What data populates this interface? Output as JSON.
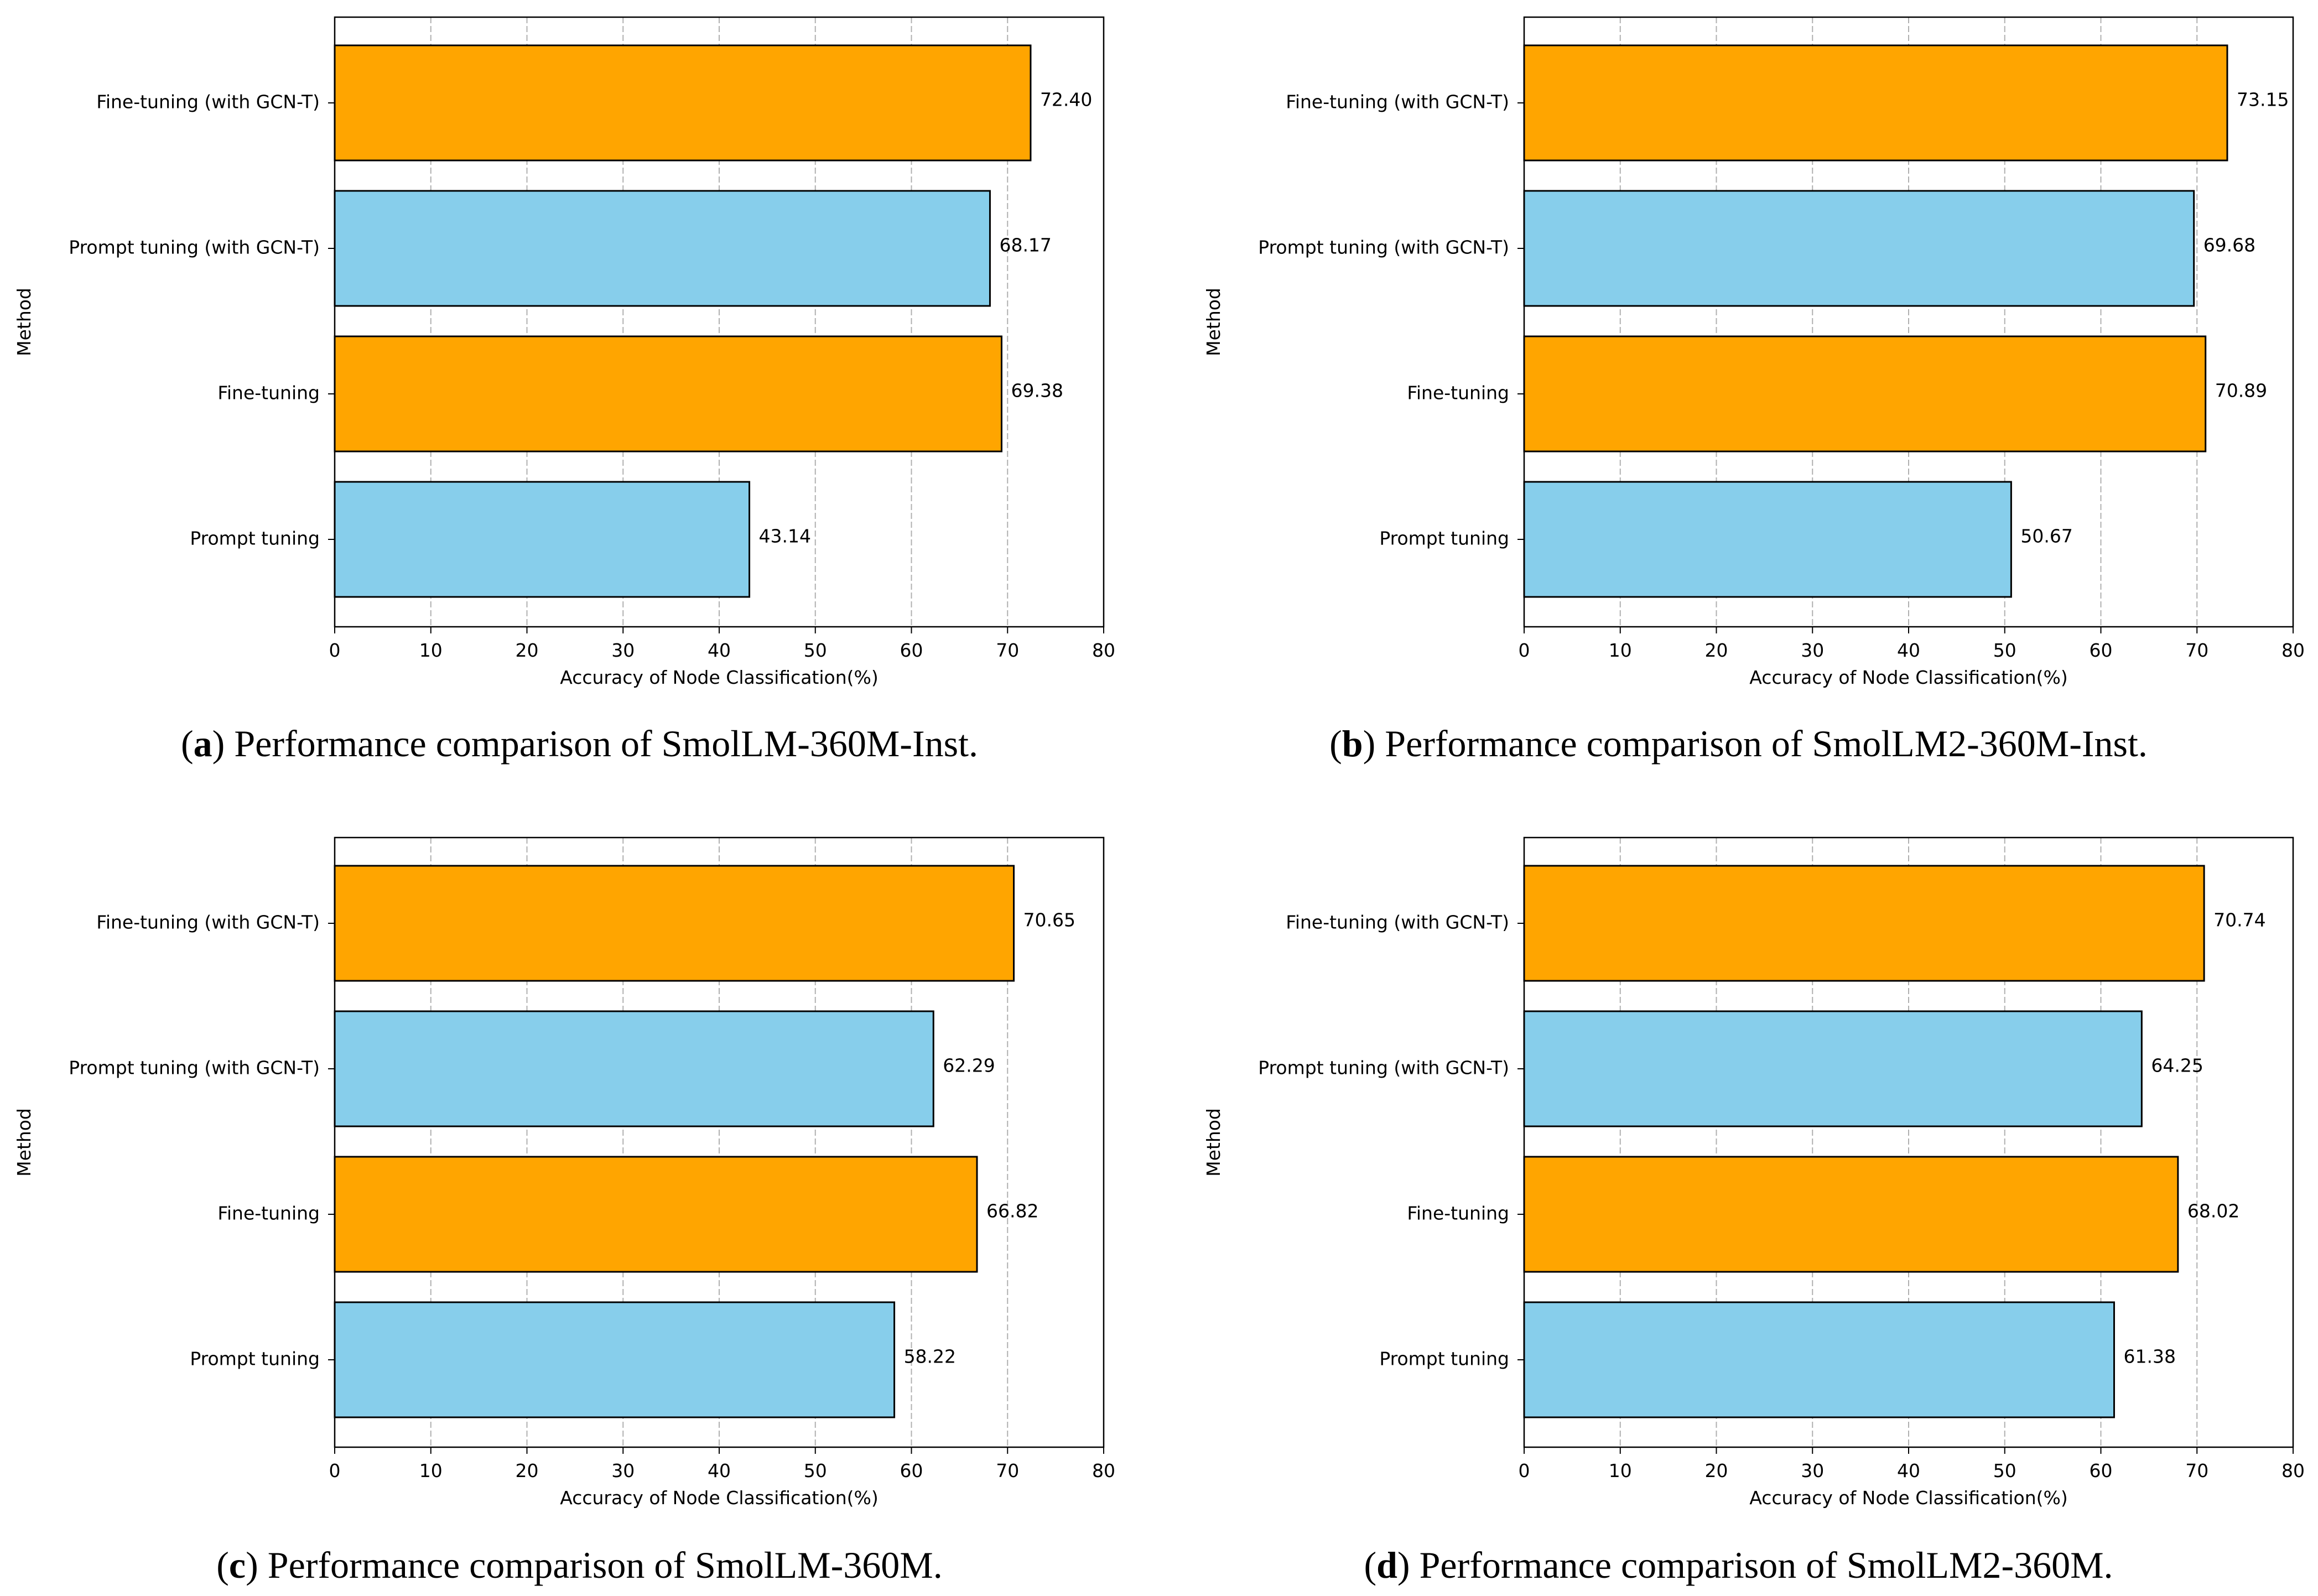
{
  "colors": {
    "orange": "#FFA500",
    "skyblue": "#87CEEB",
    "edge": "#000000",
    "grid": "#b0b0b0"
  },
  "chart_data": [
    {
      "type": "bar",
      "orientation": "horizontal",
      "caption": {
        "letter": "a",
        "text": " Performance comparison of SmolLM-360M-Inst."
      },
      "categories": [
        "Prompt tuning",
        "Fine-tuning",
        "Prompt tuning (with GCN-T)",
        "Fine-tuning (with GCN-T)"
      ],
      "values": [
        43.14,
        69.38,
        68.17,
        72.4
      ],
      "value_labels": [
        "43.14",
        "69.38",
        "68.17",
        "72.40"
      ],
      "bar_colors": [
        "skyblue",
        "orange",
        "skyblue",
        "orange"
      ],
      "xlabel": "Accuracy of Node Classification(%)",
      "ylabel": "Method",
      "xlim": [
        0,
        80
      ],
      "xticks": [
        0,
        10,
        20,
        30,
        40,
        50,
        60,
        70,
        80
      ],
      "grid": "x-dashed"
    },
    {
      "type": "bar",
      "orientation": "horizontal",
      "caption": {
        "letter": "b",
        "text": " Performance comparison of SmolLM2-360M-Inst."
      },
      "categories": [
        "Prompt tuning",
        "Fine-tuning",
        "Prompt tuning (with GCN-T)",
        "Fine-tuning (with GCN-T)"
      ],
      "values": [
        50.67,
        70.89,
        69.68,
        73.15
      ],
      "value_labels": [
        "50.67",
        "70.89",
        "69.68",
        "73.15"
      ],
      "bar_colors": [
        "skyblue",
        "orange",
        "skyblue",
        "orange"
      ],
      "xlabel": "Accuracy of Node Classification(%)",
      "ylabel": "Method",
      "xlim": [
        0,
        80
      ],
      "xticks": [
        0,
        10,
        20,
        30,
        40,
        50,
        60,
        70,
        80
      ],
      "grid": "x-dashed"
    },
    {
      "type": "bar",
      "orientation": "horizontal",
      "caption": {
        "letter": "c",
        "text": " Performance comparison of SmolLM-360M."
      },
      "categories": [
        "Prompt tuning",
        "Fine-tuning",
        "Prompt tuning (with GCN-T)",
        "Fine-tuning (with GCN-T)"
      ],
      "values": [
        58.22,
        66.82,
        62.29,
        70.65
      ],
      "value_labels": [
        "58.22",
        "66.82",
        "62.29",
        "70.65"
      ],
      "bar_colors": [
        "skyblue",
        "orange",
        "skyblue",
        "orange"
      ],
      "xlabel": "Accuracy of Node Classification(%)",
      "ylabel": "Method",
      "xlim": [
        0,
        80
      ],
      "xticks": [
        0,
        10,
        20,
        30,
        40,
        50,
        60,
        70,
        80
      ],
      "grid": "x-dashed"
    },
    {
      "type": "bar",
      "orientation": "horizontal",
      "caption": {
        "letter": "d",
        "text": " Performance comparison of SmolLM2-360M."
      },
      "categories": [
        "Prompt tuning",
        "Fine-tuning",
        "Prompt tuning (with GCN-T)",
        "Fine-tuning (with GCN-T)"
      ],
      "values": [
        61.38,
        68.02,
        64.25,
        70.74
      ],
      "value_labels": [
        "61.38",
        "68.02",
        "64.25",
        "70.74"
      ],
      "bar_colors": [
        "skyblue",
        "orange",
        "skyblue",
        "orange"
      ],
      "xlabel": "Accuracy of Node Classification(%)",
      "ylabel": "Method",
      "xlim": [
        0,
        80
      ],
      "xticks": [
        0,
        10,
        20,
        30,
        40,
        50,
        60,
        70,
        80
      ],
      "grid": "x-dashed"
    }
  ]
}
